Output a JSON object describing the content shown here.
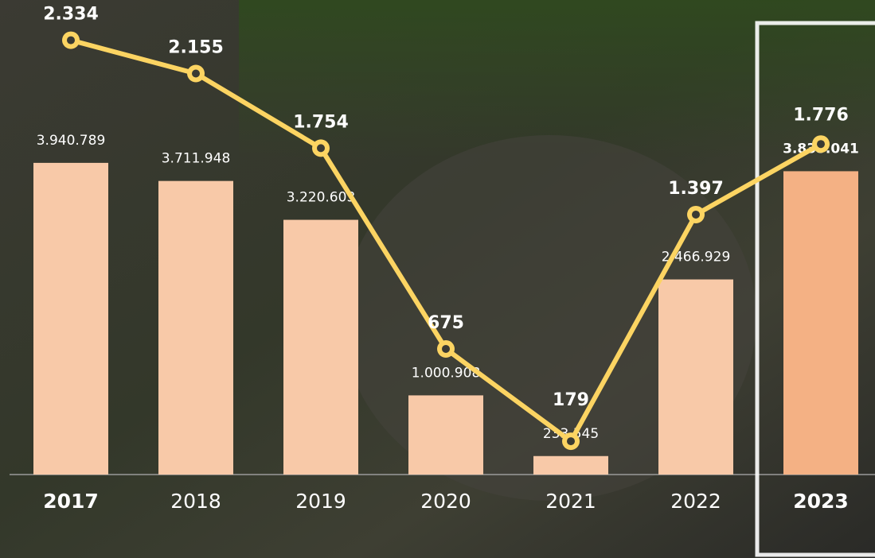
{
  "chart_data": {
    "type": "bar-line",
    "categories": [
      "2017",
      "2018",
      "2019",
      "2020",
      "2021",
      "2022",
      "2023"
    ],
    "ylim": [
      0,
      6000000
    ],
    "y2lim": [
      0,
      2550
    ],
    "series": [
      {
        "name": null,
        "type": "bar",
        "color": "#f8c9a8",
        "values": [
          3940789,
          3711948,
          3220603,
          1000908,
          233545,
          2466929,
          3835041
        ],
        "value_labels": [
          "3.940.789",
          "3.711.948",
          "3.220.603",
          "1.000.908",
          "233.545",
          "2.466.929",
          "3.835.041"
        ]
      },
      {
        "name": null,
        "type": "line",
        "axis": "y2",
        "color": "#fcd462",
        "values": [
          2334,
          2155,
          1754,
          675,
          179,
          1397,
          1776
        ],
        "value_labels": [
          "2.334",
          "2.155",
          "1.754",
          "675",
          "179",
          "1.397",
          "1.776"
        ]
      }
    ],
    "highlight_color": "#f4b184"
  }
}
